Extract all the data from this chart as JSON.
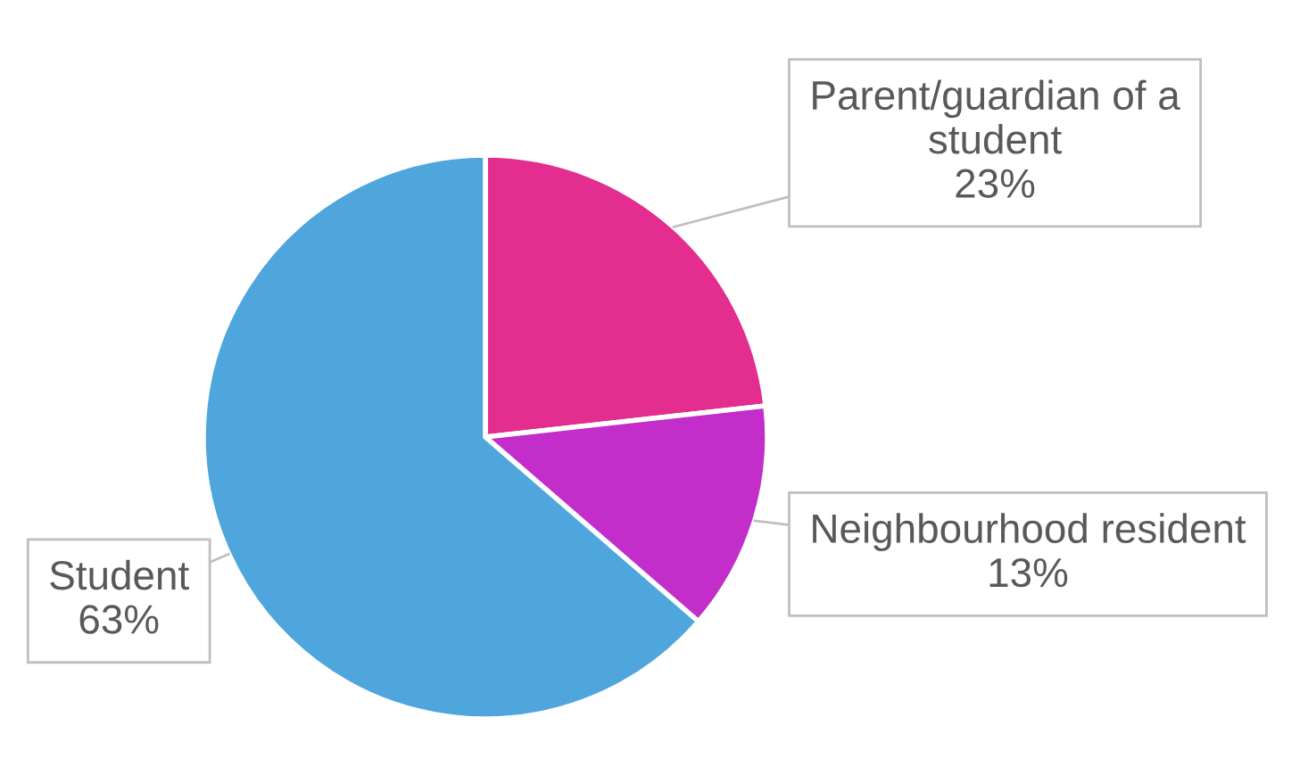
{
  "chart_data": {
    "type": "pie",
    "categories": [
      "Parent/guardian of a student",
      "Neighbourhood resident",
      "Student"
    ],
    "values": [
      23,
      13,
      63
    ],
    "colors": [
      "#e32d8f",
      "#c32ecb",
      "#4fa6dd"
    ],
    "value_labels": [
      "23%",
      "13%",
      "63%"
    ]
  }
}
